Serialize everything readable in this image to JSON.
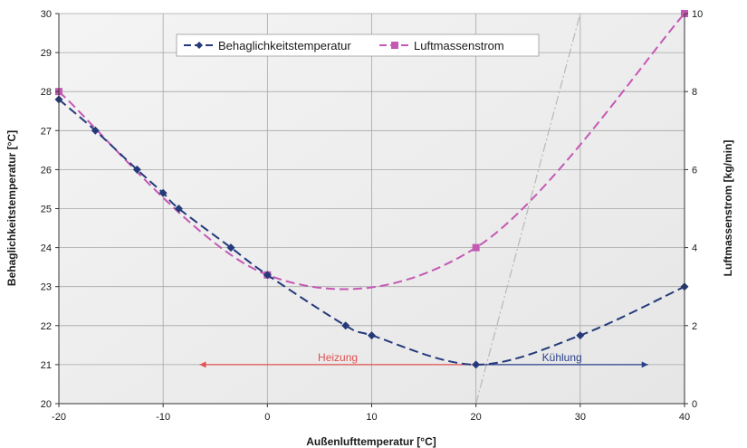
{
  "chart_data": {
    "type": "line",
    "xlabel": "Außenlufttemperatur [°C]",
    "ylabel": "Behaglichkeitstemperatur [°C]",
    "y2label": "Luftmassenstrom [kg/min]",
    "xlim": [
      -20,
      40
    ],
    "ylim": [
      20,
      30
    ],
    "y2lim": [
      0,
      10
    ],
    "x_ticks": [
      -20,
      -10,
      0,
      10,
      20,
      30,
      40
    ],
    "x_tick_labels": [
      "-20",
      "-10",
      "0",
      "10",
      "20",
      "30",
      "40"
    ],
    "y_ticks": [
      20,
      21,
      22,
      23,
      24,
      25,
      26,
      27,
      28,
      29,
      30
    ],
    "y_tick_labels": [
      "20",
      "21",
      "22",
      "23",
      "24",
      "25",
      "26",
      "27",
      "28",
      "29",
      "30"
    ],
    "y2_ticks": [
      0,
      2,
      4,
      6,
      8,
      10
    ],
    "y2_tick_labels": [
      "0",
      "2",
      "4",
      "6",
      "8",
      "10"
    ],
    "grid": true,
    "legend_position": "top-center",
    "series": [
      {
        "name": "Behaglichkeitstemperatur",
        "axis": "left",
        "color": "#243a7a",
        "marker": "diamond",
        "dash": true,
        "points": [
          [
            -20,
            27.8
          ],
          [
            -16.5,
            27.0
          ],
          [
            -12.5,
            26.0
          ],
          [
            -10,
            25.4
          ],
          [
            -8.5,
            25.0
          ],
          [
            -3.5,
            24.0
          ],
          [
            0,
            23.3
          ],
          [
            7.5,
            22.0
          ],
          [
            10,
            21.75
          ],
          [
            20,
            21.0
          ],
          [
            30,
            21.75
          ],
          [
            40,
            23.0
          ]
        ]
      },
      {
        "name": "Luftmassenstrom",
        "axis": "right",
        "color": "#c458b4",
        "marker": "square",
        "dash": true,
        "points": [
          [
            -20,
            8
          ],
          [
            0,
            3.3
          ],
          [
            20,
            4
          ],
          [
            40,
            10
          ]
        ]
      }
    ],
    "annotations": [
      {
        "text": "Heizung",
        "color": "#e05050",
        "arrow_from": 20,
        "arrow_to": -6.5,
        "y": 21
      },
      {
        "text": "Kühlung",
        "color": "#2a3f8a",
        "arrow_from": 20,
        "arrow_to": 36.5,
        "y": 21
      }
    ],
    "reference_line": {
      "color": "#b8b8b8",
      "from": [
        20,
        20
      ],
      "to": [
        30,
        30
      ]
    }
  }
}
